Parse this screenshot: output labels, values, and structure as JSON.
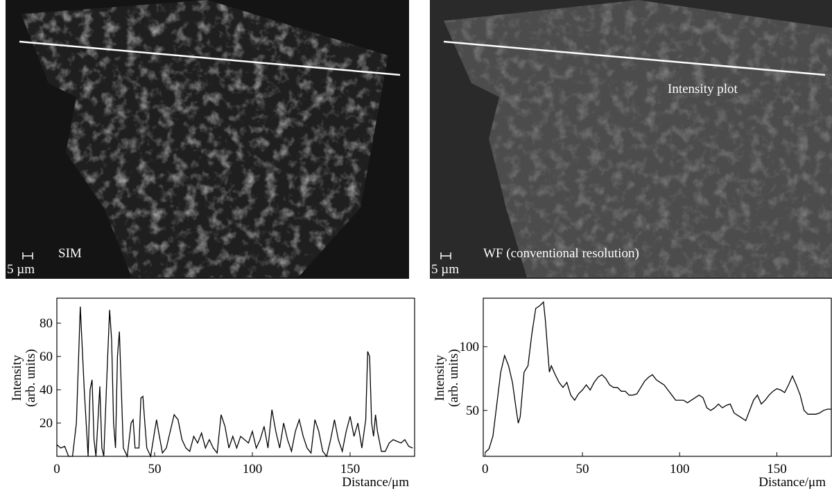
{
  "panels": [
    {
      "label": "SIM",
      "scale_label": "5 µm"
    },
    {
      "label": "WF (conventional resolution)",
      "scale_label": "5 µm",
      "annotation": "Intensity plot"
    }
  ],
  "chart_data": [
    {
      "type": "line",
      "x_label": "Distance/μm",
      "y_label": [
        "Intensity",
        "(arb. units)"
      ],
      "x": [
        0,
        2,
        4,
        6,
        8,
        10,
        12,
        14,
        16,
        17,
        18,
        19,
        20,
        22,
        23,
        24,
        26,
        27,
        28,
        29,
        30,
        31,
        32,
        33,
        34,
        36,
        38,
        39,
        40,
        42,
        43,
        44,
        45,
        46,
        48,
        50,
        51,
        52,
        54,
        56,
        58,
        60,
        62,
        64,
        66,
        68,
        70,
        72,
        74,
        76,
        78,
        80,
        82,
        84,
        86,
        88,
        90,
        92,
        94,
        96,
        98,
        100,
        102,
        104,
        106,
        108,
        110,
        112,
        114,
        116,
        118,
        120,
        122,
        124,
        126,
        128,
        130,
        132,
        134,
        136,
        138,
        140,
        142,
        144,
        146,
        148,
        150,
        152,
        154,
        156,
        158,
        159,
        160,
        161,
        162,
        163,
        164,
        166,
        168,
        170,
        172,
        174,
        176,
        178,
        180,
        182
      ],
      "values": [
        7,
        5,
        6,
        0,
        0,
        20,
        90,
        40,
        0,
        40,
        46,
        10,
        0,
        42,
        5,
        0,
        60,
        88,
        70,
        20,
        5,
        60,
        75,
        40,
        5,
        0,
        20,
        22,
        5,
        5,
        35,
        36,
        20,
        5,
        0,
        15,
        22,
        15,
        2,
        5,
        15,
        25,
        22,
        10,
        5,
        3,
        12,
        8,
        14,
        5,
        10,
        5,
        2,
        25,
        18,
        5,
        12,
        5,
        12,
        10,
        8,
        15,
        5,
        10,
        18,
        5,
        28,
        15,
        5,
        20,
        10,
        3,
        15,
        22,
        12,
        5,
        2,
        22,
        15,
        3,
        0,
        10,
        22,
        10,
        3,
        15,
        24,
        12,
        20,
        5,
        22,
        63,
        60,
        20,
        12,
        25,
        15,
        3,
        3,
        8,
        10,
        9,
        8,
        10,
        6,
        5
      ],
      "color": "#000000",
      "xlim": [
        0,
        183
      ],
      "ylim": [
        0,
        95
      ],
      "xticks": [
        0,
        50,
        100,
        150
      ],
      "yticks": [
        20,
        40,
        60,
        80
      ]
    },
    {
      "type": "line",
      "x_label": "Distance/μm",
      "y_label": [
        "Intensity",
        "(arb. units)"
      ],
      "x": [
        0,
        2,
        4,
        6,
        8,
        10,
        12,
        14,
        16,
        17,
        18,
        20,
        22,
        24,
        26,
        28,
        30,
        31,
        32,
        33,
        34,
        36,
        38,
        40,
        42,
        44,
        46,
        48,
        50,
        52,
        54,
        56,
        58,
        60,
        62,
        64,
        66,
        68,
        70,
        72,
        74,
        76,
        78,
        80,
        82,
        84,
        86,
        88,
        90,
        92,
        94,
        96,
        98,
        100,
        102,
        104,
        106,
        108,
        110,
        112,
        114,
        116,
        118,
        120,
        122,
        124,
        126,
        128,
        130,
        132,
        134,
        136,
        138,
        140,
        142,
        144,
        146,
        148,
        150,
        152,
        154,
        156,
        158,
        160,
        162,
        164,
        166,
        168,
        170,
        172,
        174,
        176,
        178
      ],
      "values": [
        17,
        20,
        30,
        55,
        80,
        93,
        85,
        72,
        50,
        40,
        45,
        80,
        85,
        110,
        130,
        132,
        135,
        120,
        100,
        80,
        85,
        78,
        72,
        68,
        72,
        62,
        58,
        63,
        66,
        70,
        66,
        72,
        76,
        78,
        75,
        70,
        68,
        68,
        65,
        65,
        62,
        62,
        63,
        68,
        73,
        76,
        78,
        74,
        72,
        70,
        66,
        62,
        58,
        58,
        58,
        56,
        58,
        60,
        62,
        60,
        52,
        50,
        52,
        55,
        52,
        54,
        55,
        48,
        46,
        44,
        42,
        50,
        58,
        62,
        55,
        58,
        62,
        65,
        67,
        66,
        64,
        70,
        77,
        70,
        62,
        50,
        47,
        47,
        47,
        48,
        50,
        51,
        51
      ],
      "color": "#000000",
      "xlim": [
        -1,
        178
      ],
      "ylim": [
        14,
        138
      ],
      "xticks": [
        0,
        50,
        100,
        150
      ],
      "yticks": [
        50,
        100
      ]
    }
  ]
}
